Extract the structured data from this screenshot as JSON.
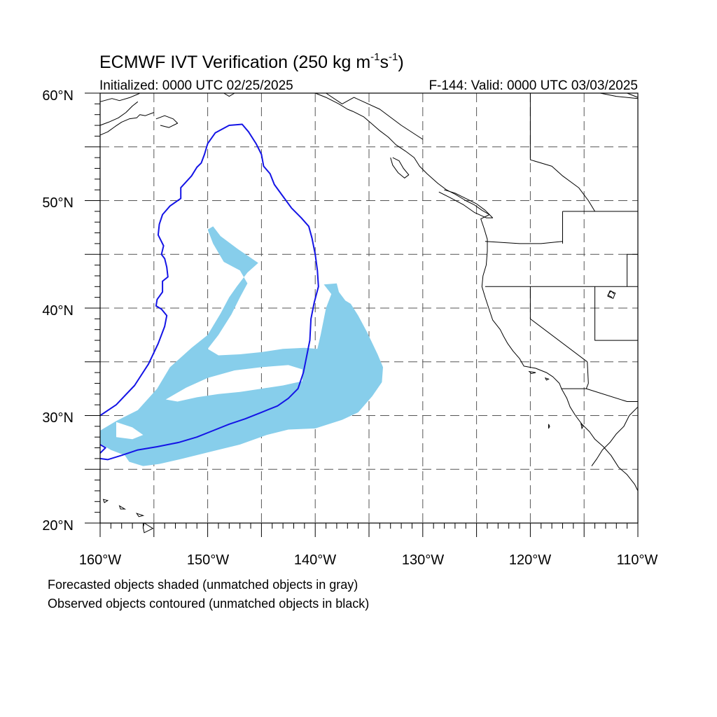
{
  "title": {
    "main": "ECMWF IVT Verification (250 kg m",
    "exp1": "-1",
    "mid": "s",
    "exp2": "-1",
    "close": ")"
  },
  "init_label": "Initialized: 0000 UTC 02/25/2025",
  "valid_label": "F-144: Valid: 0000 UTC 03/03/2025",
  "lat_labels": [
    "60°N",
    "50°N",
    "40°N",
    "30°N",
    "20°N"
  ],
  "lon_labels": [
    "160°W",
    "150°W",
    "140°W",
    "130°W",
    "120°W",
    "110°W"
  ],
  "footnotes": [
    "Forecasted objects shaded (unmatched objects in gray)",
    "Observed objects contoured (unmatched objects in black)"
  ],
  "colors": {
    "forecast_fill": "#87ceeb",
    "observed_contour": "#1414e6",
    "coastline": "#000000",
    "grid": "#555555"
  },
  "map": {
    "lon_range": [
      -160,
      -110
    ],
    "lat_range": [
      20,
      60
    ],
    "projection": "cylindrical equidistant",
    "grid_lines": "dashed every 5 degrees"
  },
  "objects": {
    "forecast_shaded": [
      [
        [
          -160,
          28.6
        ],
        [
          -158.5,
          29.5
        ],
        [
          -156.5,
          30.5
        ],
        [
          -154.7,
          32.5
        ],
        [
          -153.5,
          34.5
        ],
        [
          -151.5,
          36.3
        ],
        [
          -150,
          37.5
        ],
        [
          -148.8,
          39.5
        ],
        [
          -148,
          41
        ],
        [
          -147.3,
          42
        ],
        [
          -146.3,
          43.3
        ],
        [
          -145.3,
          44.2
        ],
        [
          -147.2,
          45.5
        ],
        [
          -148.8,
          46.7
        ],
        [
          -149.5,
          47.6
        ],
        [
          -150,
          47.3
        ],
        [
          -149.5,
          46
        ],
        [
          -148.5,
          44.3
        ],
        [
          -147,
          43.5
        ],
        [
          -146.3,
          42.3
        ],
        [
          -147,
          41
        ],
        [
          -147.8,
          39.4
        ],
        [
          -149,
          37.5
        ],
        [
          -150,
          36.2
        ],
        [
          -149,
          35.6
        ],
        [
          -147,
          35.7
        ],
        [
          -145,
          35.9
        ],
        [
          -143,
          36.2
        ],
        [
          -141,
          36.3
        ],
        [
          -139.8,
          36.2
        ],
        [
          -139.5,
          37.5
        ],
        [
          -139,
          40
        ],
        [
          -138.5,
          41.3
        ],
        [
          -139.2,
          42.2
        ],
        [
          -138,
          42.3
        ],
        [
          -137.8,
          41.5
        ],
        [
          -137.2,
          40.7
        ],
        [
          -136.7,
          40.4
        ],
        [
          -136,
          39.3
        ],
        [
          -135.2,
          37.8
        ],
        [
          -134.2,
          35.7
        ],
        [
          -133.7,
          34.5
        ],
        [
          -133.8,
          33.1
        ],
        [
          -134.7,
          31.8
        ],
        [
          -136,
          30.3
        ],
        [
          -137.5,
          29.6
        ],
        [
          -140,
          28.8
        ],
        [
          -142.5,
          28.7
        ],
        [
          -144.5,
          28.2
        ],
        [
          -147,
          27.3
        ],
        [
          -149.5,
          26.7
        ],
        [
          -152.3,
          26
        ],
        [
          -154.5,
          25.5
        ],
        [
          -156,
          25.3
        ],
        [
          -157.3,
          25.7
        ],
        [
          -157.7,
          26.3
        ],
        [
          -159,
          26.8
        ],
        [
          -160,
          27.4
        ]
      ],
      [
        [
          -153.9,
          31.5
        ],
        [
          -152,
          32.6
        ],
        [
          -150,
          33.5
        ],
        [
          -147.5,
          34.2
        ],
        [
          -145,
          34.5
        ],
        [
          -142.5,
          34.7
        ],
        [
          -141.2,
          34.3
        ],
        [
          -141.2,
          33.2
        ],
        [
          -143,
          32.8
        ],
        [
          -145,
          32.5
        ],
        [
          -147,
          32.2
        ],
        [
          -149,
          32
        ],
        [
          -151,
          31.7
        ],
        [
          -152.8,
          31.3
        ]
      ],
      [
        [
          -158.5,
          29.4
        ],
        [
          -157,
          28.9
        ],
        [
          -156,
          28.2
        ],
        [
          -157,
          27.8
        ],
        [
          -158.5,
          28
        ]
      ]
    ],
    "observed_contour": [
      [
        [
          -160,
          30
        ],
        [
          -158.5,
          31
        ],
        [
          -156.8,
          32.8
        ],
        [
          -155.5,
          34.8
        ],
        [
          -154.6,
          36.7
        ],
        [
          -154,
          38.3
        ],
        [
          -153.8,
          39.3
        ],
        [
          -154.3,
          39.9
        ],
        [
          -154.8,
          40.2
        ],
        [
          -154.7,
          40.8
        ],
        [
          -154.2,
          41.5
        ],
        [
          -154.2,
          42.5
        ],
        [
          -153.7,
          42.9
        ],
        [
          -153.8,
          43.8
        ],
        [
          -154,
          44.6
        ],
        [
          -154.3,
          45
        ],
        [
          -154.1,
          45.8
        ],
        [
          -154.6,
          46.8
        ],
        [
          -154.5,
          47.8
        ],
        [
          -154.2,
          48.7
        ],
        [
          -153.5,
          49.5
        ],
        [
          -152.5,
          50.2
        ],
        [
          -152.5,
          51.2
        ],
        [
          -151.5,
          52.3
        ],
        [
          -151,
          53.1
        ],
        [
          -150.6,
          53.5
        ],
        [
          -150.3,
          54.3
        ],
        [
          -150,
          55.3
        ],
        [
          -149.3,
          56.3
        ],
        [
          -148,
          57
        ],
        [
          -146.8,
          57.1
        ],
        [
          -146.2,
          56.4
        ],
        [
          -145.5,
          55.3
        ],
        [
          -145,
          54.3
        ],
        [
          -144.8,
          53.2
        ],
        [
          -144.2,
          52.5
        ],
        [
          -143.8,
          51.5
        ],
        [
          -143,
          50.4
        ],
        [
          -142.2,
          49.3
        ],
        [
          -141.3,
          48.4
        ],
        [
          -140.6,
          47.6
        ],
        [
          -140.3,
          46.5
        ],
        [
          -140,
          45
        ],
        [
          -139.8,
          43.5
        ],
        [
          -139.7,
          42
        ],
        [
          -140.1,
          40.5
        ],
        [
          -140.4,
          39
        ],
        [
          -140.5,
          37
        ],
        [
          -140.8,
          35.5
        ],
        [
          -141.1,
          34
        ],
        [
          -141.6,
          32.5
        ],
        [
          -142.5,
          31.6
        ],
        [
          -143.5,
          30.9
        ],
        [
          -145,
          30.3
        ],
        [
          -146.5,
          29.7
        ],
        [
          -148,
          29.2
        ],
        [
          -149.5,
          28.6
        ],
        [
          -151,
          28
        ],
        [
          -152.7,
          27.5
        ],
        [
          -154.7,
          27.1
        ],
        [
          -156.5,
          26.8
        ],
        [
          -158,
          26.3
        ],
        [
          -159.3,
          25.9
        ],
        [
          -160,
          26
        ]
      ],
      [
        [
          -160,
          26.5
        ],
        [
          -159.5,
          27
        ],
        [
          -160,
          27.3
        ]
      ]
    ],
    "coastlines_and_borders": [
      [
        [
          -148.5,
          60
        ],
        [
          -148,
          59.7
        ],
        [
          -147.5,
          60
        ]
      ],
      [
        [
          -160,
          59.2
        ],
        [
          -158.9,
          59.5
        ],
        [
          -158.2,
          59.3
        ],
        [
          -157.2,
          59.6
        ],
        [
          -156.5,
          59.9
        ],
        [
          -156.3,
          60
        ]
      ],
      [
        [
          -160,
          57
        ],
        [
          -159.2,
          57.3
        ],
        [
          -158.3,
          57.7
        ],
        [
          -157.6,
          58.2
        ],
        [
          -157,
          58.8
        ],
        [
          -156.5,
          59.2
        ]
      ],
      [
        [
          -160,
          56.1
        ],
        [
          -159.3,
          56.4
        ],
        [
          -158.6,
          56.9
        ],
        [
          -158,
          57.3
        ],
        [
          -157.3,
          57.6
        ],
        [
          -156.6,
          57.7
        ],
        [
          -156.3,
          58
        ],
        [
          -155.8,
          57.9
        ],
        [
          -155,
          58.2
        ]
      ],
      [
        [
          -154.8,
          57.6
        ],
        [
          -154,
          57.9
        ],
        [
          -153.2,
          57.6
        ],
        [
          -152.8,
          57.2
        ],
        [
          -153.6,
          56.8
        ],
        [
          -154.4,
          57
        ]
      ],
      [
        [
          -140,
          60
        ],
        [
          -139,
          59.6
        ],
        [
          -137.8,
          59
        ],
        [
          -137,
          58.5
        ],
        [
          -136.5,
          58.3
        ],
        [
          -135.5,
          57.8
        ],
        [
          -134.8,
          57.2
        ],
        [
          -134,
          56.5
        ],
        [
          -133.2,
          55.9
        ],
        [
          -132.5,
          55.2
        ],
        [
          -131.6,
          54.6
        ],
        [
          -130.8,
          54
        ],
        [
          -130.3,
          53.2
        ],
        [
          -129.6,
          52.5
        ],
        [
          -128.6,
          51.6
        ],
        [
          -127.8,
          51
        ],
        [
          -127,
          50.6
        ],
        [
          -126,
          50
        ],
        [
          -125.2,
          49.6
        ],
        [
          -124.5,
          49.1
        ],
        [
          -123.8,
          48.7
        ],
        [
          -124.6,
          48.3
        ],
        [
          -124.3,
          47.4
        ],
        [
          -124,
          46.4
        ],
        [
          -124,
          45.3
        ],
        [
          -124.1,
          44
        ],
        [
          -124.4,
          43
        ],
        [
          -124.5,
          42
        ],
        [
          -124.2,
          41
        ],
        [
          -123.8,
          39.8
        ],
        [
          -123.5,
          38.9
        ],
        [
          -122.8,
          38
        ],
        [
          -122.5,
          37.4
        ],
        [
          -122.1,
          36.7
        ],
        [
          -121.6,
          36
        ],
        [
          -121,
          35.3
        ],
        [
          -120.6,
          34.6
        ],
        [
          -119.5,
          34.4
        ],
        [
          -118.5,
          34
        ],
        [
          -117.9,
          33.6
        ],
        [
          -117.3,
          33
        ],
        [
          -117.1,
          32.5
        ],
        [
          -116.6,
          31.6
        ],
        [
          -116.3,
          30.8
        ],
        [
          -115.8,
          30
        ],
        [
          -115.2,
          29.2
        ],
        [
          -114.5,
          28.5
        ],
        [
          -114,
          27.8
        ],
        [
          -113.2,
          27.1
        ],
        [
          -112.5,
          26.3
        ],
        [
          -111.8,
          25.2
        ],
        [
          -111,
          24.5
        ],
        [
          -110.3,
          23.6
        ],
        [
          -110,
          23
        ]
      ],
      [
        [
          -128.5,
          50.8
        ],
        [
          -127.5,
          50.3
        ],
        [
          -126.2,
          49.6
        ],
        [
          -125.2,
          48.9
        ],
        [
          -124.1,
          48.4
        ],
        [
          -123.5,
          48.4
        ],
        [
          -124.2,
          49.1
        ],
        [
          -125,
          49.7
        ],
        [
          -126,
          50.2
        ],
        [
          -127,
          50.7
        ],
        [
          -128,
          51
        ]
      ],
      [
        [
          -132.8,
          54
        ],
        [
          -132.2,
          53.7
        ],
        [
          -131.8,
          53
        ],
        [
          -131.3,
          52.4
        ],
        [
          -131.7,
          52.1
        ],
        [
          -132.3,
          52.6
        ],
        [
          -132.8,
          53.3
        ],
        [
          -133,
          54
        ]
      ],
      [
        [
          -110,
          30.8
        ],
        [
          -110.8,
          30
        ],
        [
          -111.3,
          29
        ],
        [
          -112,
          28.3
        ],
        [
          -112.6,
          27.5
        ],
        [
          -113.3,
          26.8
        ],
        [
          -113.8,
          26
        ],
        [
          -114.3,
          25.3
        ]
      ],
      [
        [
          -117,
          49
        ],
        [
          -110,
          49
        ]
      ],
      [
        [
          -124.2,
          46.2
        ],
        [
          -121,
          46
        ],
        [
          -119,
          46
        ],
        [
          -117,
          46.2
        ]
      ],
      [
        [
          -124.2,
          42
        ],
        [
          -110,
          42
        ]
      ],
      [
        [
          -117,
          49
        ],
        [
          -117,
          46
        ]
      ],
      [
        [
          -120,
          42
        ],
        [
          -120,
          39
        ],
        [
          -114.7,
          35
        ]
      ],
      [
        [
          -114.7,
          35
        ],
        [
          -114.6,
          33
        ],
        [
          -114.8,
          32.5
        ]
      ],
      [
        [
          -117.1,
          32.5
        ],
        [
          -114.8,
          32.5
        ],
        [
          -111,
          31.3
        ],
        [
          -110,
          31.3
        ]
      ],
      [
        [
          -111,
          42
        ],
        [
          -111,
          45
        ],
        [
          -110,
          45
        ]
      ],
      [
        [
          -114,
          42
        ],
        [
          -114,
          37
        ],
        [
          -110,
          37
        ]
      ],
      [
        [
          -130,
          55.7
        ],
        [
          -132,
          57
        ],
        [
          -134,
          58.5
        ],
        [
          -136.4,
          59.6
        ],
        [
          -137.5,
          59
        ],
        [
          -139,
          60
        ]
      ],
      [
        [
          -141,
          60
        ],
        [
          -141,
          60
        ]
      ],
      [
        [
          -120,
          60
        ],
        [
          -120,
          53.8
        ],
        [
          -118,
          53.2
        ],
        [
          -117,
          52.3
        ],
        [
          -115.5,
          51.2
        ],
        [
          -114.6,
          50
        ],
        [
          -114,
          49
        ]
      ],
      [
        [
          -112.4,
          41
        ],
        [
          -112.8,
          41.2
        ],
        [
          -112.5,
          41.6
        ],
        [
          -112.2,
          41.3
        ]
      ],
      [
        [
          -113.5,
          60
        ],
        [
          -112,
          59.7
        ],
        [
          -110,
          59.5
        ]
      ],
      [
        [
          -110,
          59.6
        ],
        [
          -111,
          60
        ]
      ]
    ],
    "islands": [
      [
        [
          -155.9,
          20
        ],
        [
          -155.1,
          19.5
        ],
        [
          -155.9,
          19.1
        ],
        [
          -156,
          19.6
        ]
      ],
      [
        [
          -156.6,
          20.9
        ],
        [
          -156,
          20.7
        ],
        [
          -156.4,
          20.6
        ]
      ],
      [
        [
          -158.2,
          21.6
        ],
        [
          -157.7,
          21.3
        ],
        [
          -158.1,
          21.3
        ]
      ],
      [
        [
          -159.7,
          22.2
        ],
        [
          -159.3,
          22.1
        ],
        [
          -159.6,
          21.9
        ]
      ],
      [
        [
          -118.6,
          33.5
        ],
        [
          -118.3,
          33.4
        ],
        [
          -118.5,
          33.3
        ]
      ],
      [
        [
          -120.1,
          34.1
        ],
        [
          -119.5,
          34
        ],
        [
          -119.9,
          33.9
        ]
      ],
      [
        [
          -115.3,
          29.3
        ],
        [
          -115.1,
          29
        ],
        [
          -115.2,
          28.8
        ]
      ],
      [
        [
          -118.3,
          29.2
        ],
        [
          -118.2,
          29
        ],
        [
          -118.3,
          28.8
        ]
      ]
    ],
    "lakes": [
      [
        [
          -112.6,
          41.6
        ],
        [
          -112.1,
          41.4
        ],
        [
          -112.3,
          40.9
        ],
        [
          -112.8,
          41.1
        ]
      ]
    ]
  }
}
